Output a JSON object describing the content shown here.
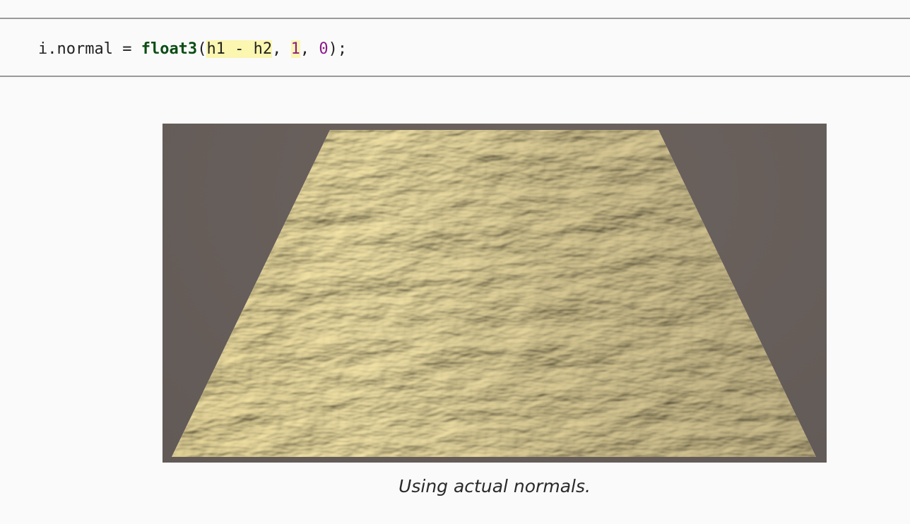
{
  "code": {
    "prefix": "i.normal = ",
    "keyword": "float3",
    "open_paren": "(",
    "arg1": "h1 - h2",
    "sep1": ", ",
    "arg2": "1",
    "sep2": ", ",
    "arg3": "0",
    "suffix": ");"
  },
  "figure": {
    "caption": "Using actual normals."
  },
  "colors": {
    "background": "#fafafa",
    "code_keyword": "#0a4d14",
    "code_highlight": "#fbf6b0",
    "code_number": "#8b1a8b",
    "viewport_background": "#675f5b",
    "surface_light": "#f1eac2",
    "surface_shadow": "#bdb59a"
  }
}
